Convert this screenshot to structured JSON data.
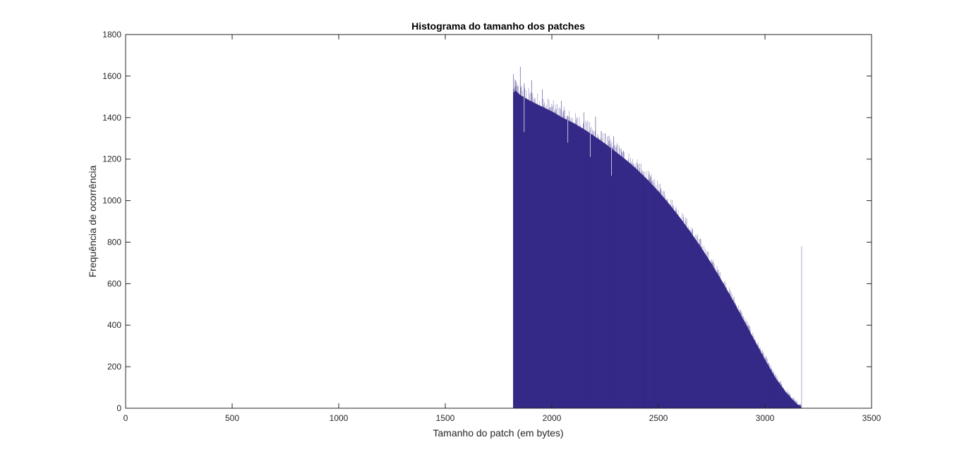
{
  "chart_data": {
    "type": "bar",
    "subtype": "histogram",
    "title": "Histograma do tamanho dos patches",
    "xlabel": "Tamanho do patch (em bytes)",
    "ylabel": "Frequência de ocorrência",
    "xlim": [
      0,
      3500
    ],
    "ylim": [
      0,
      1800
    ],
    "xticks": [
      0,
      500,
      1000,
      1500,
      2000,
      2500,
      3000,
      3500
    ],
    "yticks": [
      0,
      200,
      400,
      600,
      800,
      1000,
      1200,
      1400,
      1600,
      1800
    ],
    "grid": false,
    "legend": "none",
    "bar_color": "#352A87",
    "outlier_color": "#B8B8D0",
    "bin_width": 1,
    "envelope": {
      "x": [
        1818,
        1830,
        1850,
        1900,
        1950,
        2000,
        2050,
        2100,
        2150,
        2200,
        2250,
        2300,
        2350,
        2400,
        2450,
        2500,
        2550,
        2600,
        2650,
        2700,
        2750,
        2800,
        2850,
        2900,
        2950,
        3000,
        3050,
        3100,
        3150,
        3170
      ],
      "y": [
        1520,
        1530,
        1510,
        1480,
        1455,
        1430,
        1400,
        1375,
        1345,
        1310,
        1275,
        1235,
        1195,
        1150,
        1100,
        1045,
        985,
        920,
        850,
        775,
        695,
        610,
        520,
        425,
        330,
        235,
        145,
        75,
        20,
        12
      ]
    },
    "spikes": [
      {
        "x": 1820,
        "y": 1610
      },
      {
        "x": 1829,
        "y": 1580
      },
      {
        "x": 1852,
        "y": 1645
      },
      {
        "x": 1870,
        "y": 1565
      },
      {
        "x": 1905,
        "y": 1580
      },
      {
        "x": 1955,
        "y": 1535
      },
      {
        "x": 2045,
        "y": 1480
      },
      {
        "x": 2150,
        "y": 1425
      },
      {
        "x": 2205,
        "y": 1405
      },
      {
        "x": 2290,
        "y": 1310
      }
    ],
    "dips": [
      {
        "x": 1870,
        "y": 1330
      },
      {
        "x": 2075,
        "y": 1280
      },
      {
        "x": 2180,
        "y": 1210
      },
      {
        "x": 2280,
        "y": 1120
      }
    ],
    "outliers": [
      {
        "x": 3170,
        "y": 780
      }
    ]
  }
}
